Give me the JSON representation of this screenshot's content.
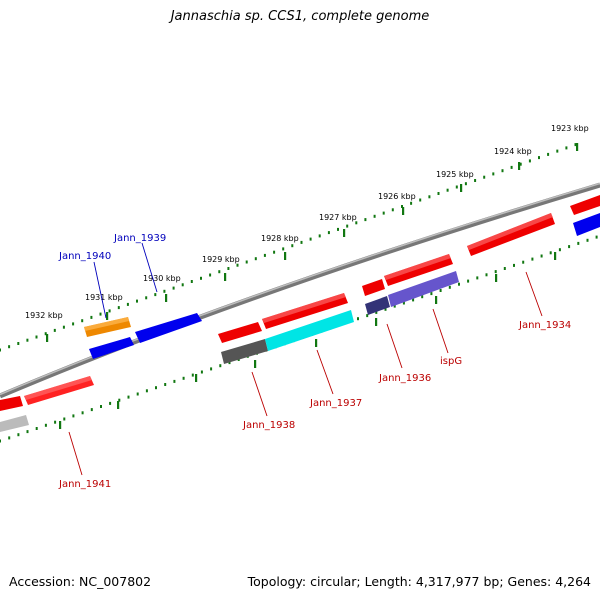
{
  "title": "Jannaschia sp. CCS1, complete genome",
  "footer": {
    "accession": "Accession: NC_007802",
    "summary": "Topology: circular; Length: 4,317,977 bp; Genes: 4,264"
  },
  "ticks": [
    "1923 kbp",
    "1924 kbp",
    "1925 kbp",
    "1926 kbp",
    "1927 kbp",
    "1928 kbp",
    "1929 kbp",
    "1930 kbp",
    "1931 kbp",
    "1932 kbp"
  ],
  "gene_labels": {
    "jann_1940": "Jann_1940",
    "jann_1939": "Jann_1939",
    "jann_1938": "Jann_1938",
    "jann_1937": "Jann_1937",
    "jann_1936": "Jann_1936",
    "ispg": "ispG",
    "jann_1934": "Jann_1934",
    "jann_1941": "Jann_1941"
  },
  "colors": {
    "red": "#ee0000",
    "blue": "#0000ee",
    "orange": "#ee8800",
    "cyan": "#00e5e5",
    "slate": "#6655cc",
    "darkslate": "#333377",
    "gray": "#555555",
    "lightgray": "#bbbbbb",
    "label_blue": "#0000bb",
    "label_red": "#bb0000",
    "tick_green": "#117711"
  }
}
